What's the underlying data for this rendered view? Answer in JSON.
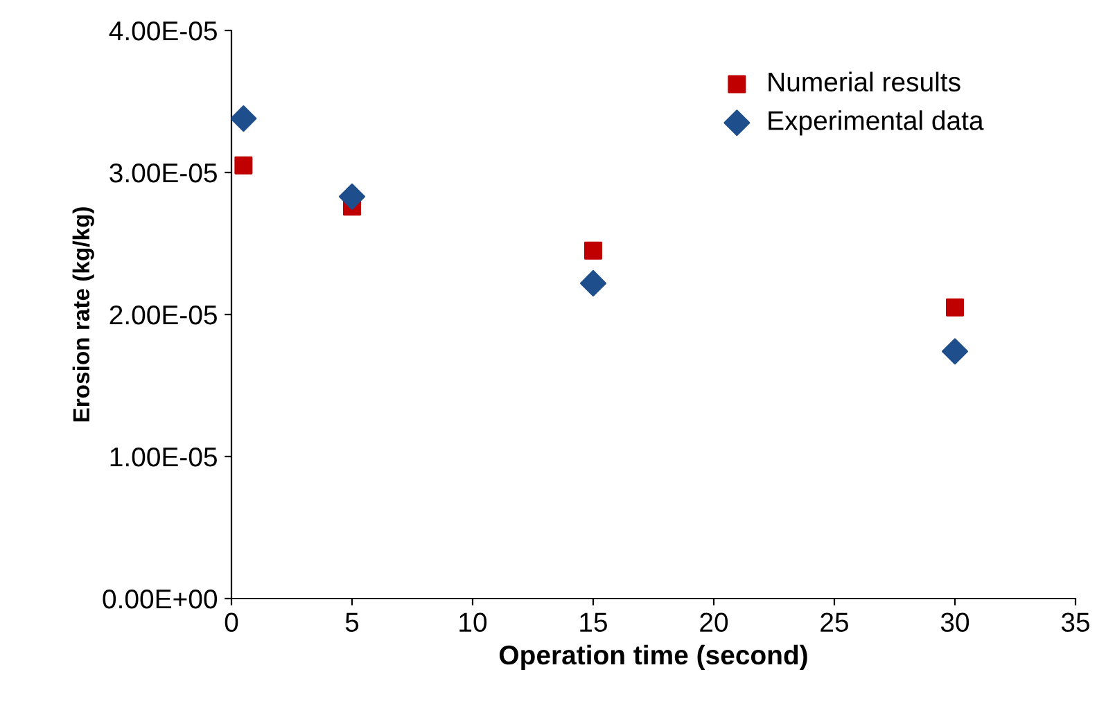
{
  "chart_data": {
    "type": "scatter",
    "xlabel": "Operation time (second)",
    "ylabel": "Erosion rate (kg/kg)",
    "series": [
      {
        "name": "Numerial results",
        "color": "#c00000",
        "marker": "square",
        "x": [
          0.5,
          5,
          15,
          30
        ],
        "values": [
          3.05e-05,
          2.76e-05,
          2.45e-05,
          2.05e-05
        ]
      },
      {
        "name": "Experimental data",
        "color": "#1f4e8c",
        "marker": "diamond",
        "x": [
          0.5,
          5,
          15,
          30
        ],
        "values": [
          3.38e-05,
          2.83e-05,
          2.22e-05,
          1.74e-05
        ]
      }
    ],
    "xlim": [
      0,
      35
    ],
    "xticks": [
      0,
      5,
      10,
      15,
      20,
      25,
      30,
      35
    ],
    "ylim": [
      0,
      4e-05
    ],
    "yticks": [
      {
        "value": 0,
        "label": "0.00E+00"
      },
      {
        "value": 1e-05,
        "label": "1.00E-05"
      },
      {
        "value": 2e-05,
        "label": "2.00E-05"
      },
      {
        "value": 3e-05,
        "label": "3.00E-05"
      },
      {
        "value": 4e-05,
        "label": "4.00E-05"
      }
    ],
    "grid": false,
    "legend": "top right"
  }
}
